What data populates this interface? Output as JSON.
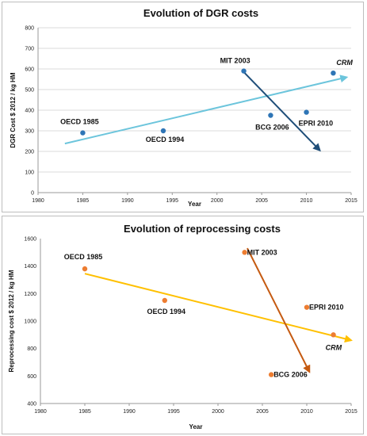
{
  "chart_data": [
    {
      "type": "scatter",
      "title": "Evolution of DGR costs",
      "xlabel": "Year",
      "ylabel": "DGR Cost $ 2012 / kg HM",
      "xlim": [
        1980,
        2015
      ],
      "ylim": [
        0,
        800
      ],
      "xticks": [
        "1980",
        "1985",
        "1990",
        "1995",
        "2000",
        "2005",
        "2010",
        "2015"
      ],
      "yticks": [
        "0",
        "100",
        "200",
        "300",
        "400",
        "500",
        "600",
        "700",
        "800"
      ],
      "grid": true,
      "point_color": "#2e75b6",
      "points": [
        {
          "x": 1985,
          "y": 290
        },
        {
          "x": 1994,
          "y": 300
        },
        {
          "x": 2003,
          "y": 590
        },
        {
          "x": 2006,
          "y": 375
        },
        {
          "x": 2010,
          "y": 390
        },
        {
          "x": 2013,
          "y": 580
        }
      ],
      "annotations": [
        {
          "text": "OECD 1985",
          "x": 1985,
          "y": 290,
          "italic": false
        },
        {
          "text": "OECD 1994",
          "x": 1994,
          "y": 300,
          "italic": false
        },
        {
          "text": "MIT 2003",
          "x": 2003,
          "y": 590,
          "italic": false
        },
        {
          "text": "BCG 2006",
          "x": 2006,
          "y": 375,
          "italic": false
        },
        {
          "text": "EPRI 2010",
          "x": 2010,
          "y": 390,
          "italic": false
        },
        {
          "text": "CRM",
          "x": 2013,
          "y": 580,
          "italic": true
        }
      ],
      "trend_arrows": [
        {
          "from": [
            1983,
            238
          ],
          "to": [
            2014.5,
            560
          ],
          "color": "#6cc5dc"
        },
        {
          "from": [
            2003,
            585
          ],
          "to": [
            2011.5,
            205
          ],
          "color": "#1f4e79"
        }
      ]
    },
    {
      "type": "scatter",
      "title": "Evolution of reprocessing costs",
      "xlabel": "Year",
      "ylabel": "Reprocessing cost $ 2012 / kg HM",
      "xlim": [
        1980,
        2015
      ],
      "ylim": [
        400,
        1600
      ],
      "xticks": [
        "1980",
        "1985",
        "1990",
        "1995",
        "2000",
        "2005",
        "2010",
        "2015"
      ],
      "yticks": [
        "400",
        "600",
        "800",
        "1000",
        "1200",
        "1400",
        "1600"
      ],
      "grid": false,
      "point_color": "#ed7d31",
      "points": [
        {
          "x": 1985,
          "y": 1380
        },
        {
          "x": 1994,
          "y": 1150
        },
        {
          "x": 2003,
          "y": 1500
        },
        {
          "x": 2006,
          "y": 610
        },
        {
          "x": 2010,
          "y": 1100
        },
        {
          "x": 2013,
          "y": 900
        }
      ],
      "annotations": [
        {
          "text": "OECD 1985",
          "x": 1985,
          "y": 1380,
          "italic": false
        },
        {
          "text": "OECD 1994",
          "x": 1994,
          "y": 1150,
          "italic": false
        },
        {
          "text": "MIT 2003",
          "x": 2003,
          "y": 1500,
          "italic": false
        },
        {
          "text": "BCG 2006",
          "x": 2006,
          "y": 610,
          "italic": false
        },
        {
          "text": "EPRI 2010",
          "x": 2010,
          "y": 1100,
          "italic": false
        },
        {
          "text": "CRM",
          "x": 2013,
          "y": 900,
          "italic": true
        }
      ],
      "trend_arrows": [
        {
          "from": [
            1985,
            1345
          ],
          "to": [
            2015,
            860
          ],
          "color": "#ffc000"
        },
        {
          "from": [
            2003.3,
            1530
          ],
          "to": [
            2010.3,
            630
          ],
          "color": "#c55a11"
        }
      ]
    }
  ]
}
